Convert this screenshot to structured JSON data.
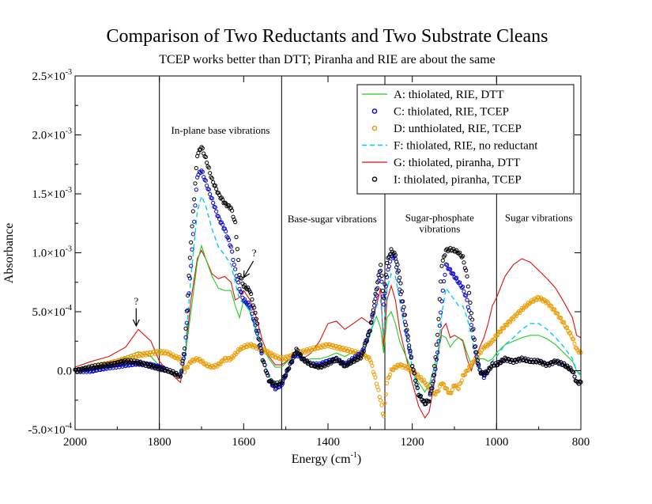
{
  "chart_data": {
    "type": "line",
    "title": "Comparison of Two Reductants and Two Substrate Cleans",
    "subtitle": "TCEP works better than DTT; Piranha and RIE are about the same",
    "xlabel": "Energy (cm",
    "xlabel_sup": "-1",
    "xlabel_end": ")",
    "ylabel": "Absorbance",
    "xlim": [
      2000,
      800
    ],
    "ylim": [
      -0.0005,
      0.0025
    ],
    "x_reversed": true,
    "grid": false,
    "legend_position": "top-right",
    "x_ticks": [
      {
        "value": 2000,
        "label": "2000"
      },
      {
        "value": 1800,
        "label": "1800"
      },
      {
        "value": 1600,
        "label": "1600"
      },
      {
        "value": 1400,
        "label": "1400"
      },
      {
        "value": 1200,
        "label": "1200"
      },
      {
        "value": 1000,
        "label": "1000"
      },
      {
        "value": 800,
        "label": "800"
      }
    ],
    "y_ticks": [
      {
        "value": -0.0005,
        "mant": "-5.0×10",
        "exp": "-4"
      },
      {
        "value": 0,
        "mant": "0.0",
        "exp": ""
      },
      {
        "value": 0.0005,
        "mant": "5.0×10",
        "exp": "-4"
      },
      {
        "value": 0.001,
        "mant": "1.0×10",
        "exp": "-3"
      },
      {
        "value": 0.0015,
        "mant": "1.5×10",
        "exp": "-3"
      },
      {
        "value": 0.002,
        "mant": "2.0×10",
        "exp": "-3"
      },
      {
        "value": 0.0025,
        "mant": "2.5×10",
        "exp": "-3"
      }
    ],
    "region_lines": [
      1800,
      1510,
      1265,
      1000
    ],
    "region_labels": [
      {
        "lines": [
          "In-plane base vibrations"
        ],
        "x": 1655,
        "y": 0.00201
      },
      {
        "lines": [
          "Base-sugar vibrations"
        ],
        "x": 1390,
        "y": 0.00126
      },
      {
        "lines": [
          "Sugar-phosphate",
          "vibrations"
        ],
        "x": 1135,
        "y": 0.00127
      },
      {
        "lines": [
          "Sugar vibrations"
        ],
        "x": 900,
        "y": 0.00127
      }
    ],
    "annotations": [
      {
        "text": "?",
        "text_x": 1855,
        "text_y": 0.00056,
        "from": [
          1855,
          0.00053
        ],
        "to": [
          1855,
          0.00038
        ]
      },
      {
        "text": "?",
        "text_x": 1575,
        "text_y": 0.00097,
        "from": [
          1577,
          0.00093
        ],
        "to": [
          1600,
          0.00079
        ]
      }
    ],
    "series": [
      {
        "name": "A: thiolated, RIE, DTT",
        "color": "#22cc22",
        "style": "line",
        "x": [
          2000,
          1960,
          1920,
          1880,
          1850,
          1820,
          1800,
          1780,
          1765,
          1750,
          1740,
          1725,
          1710,
          1700,
          1690,
          1675,
          1660,
          1645,
          1630,
          1620,
          1610,
          1600,
          1585,
          1570,
          1555,
          1540,
          1525,
          1510,
          1490,
          1475,
          1460,
          1440,
          1420,
          1400,
          1380,
          1360,
          1340,
          1320,
          1300,
          1285,
          1275,
          1268,
          1260,
          1250,
          1240,
          1230,
          1215,
          1200,
          1185,
          1170,
          1160,
          1150,
          1140,
          1130,
          1120,
          1110,
          1100,
          1090,
          1080,
          1070,
          1060,
          1050,
          1040,
          1030,
          1020,
          1010,
          1000,
          980,
          960,
          940,
          920,
          900,
          880,
          860,
          840,
          820,
          810,
          800
        ],
        "y": [
          0.0,
          2e-05,
          5e-05,
          0.00012,
          0.00016,
          0.00012,
          4e-05,
          0.0,
          -2e-05,
          -5e-05,
          0.0001,
          0.0005,
          0.00092,
          0.00106,
          0.00095,
          0.0008,
          0.0007,
          0.00068,
          0.00068,
          0.00055,
          0.00045,
          0.0006,
          0.0005,
          0.00035,
          0.0002,
          0.0001,
          3e-05,
          3e-05,
          0.0001,
          0.00015,
          8e-05,
          0.0001,
          0.0001,
          0.00012,
          0.00015,
          0.00012,
          0.00016,
          0.00012,
          0.00032,
          0.00046,
          0.00036,
          0.00015,
          0.00045,
          0.0005,
          0.0004,
          0.00025,
          0.00012,
          0.0,
          -0.0001,
          -0.00018,
          -0.00012,
          0.0,
          0.00015,
          0.0003,
          0.00028,
          0.0002,
          0.00025,
          0.00028,
          0.00026,
          0.00015,
          5e-05,
          8e-05,
          0.0001,
          0.0001,
          8e-05,
          0.0001,
          0.00015,
          0.00022,
          0.00025,
          0.00028,
          0.0003,
          0.0003,
          0.00027,
          0.00022,
          0.00015,
          8e-05,
          0.0,
          -3e-05
        ]
      },
      {
        "name": "C: thiolated, RIE, TCEP",
        "color": "#0000cc",
        "style": "circles",
        "x": [
          2000,
          1960,
          1920,
          1880,
          1850,
          1820,
          1800,
          1780,
          1765,
          1750,
          1740,
          1725,
          1710,
          1700,
          1690,
          1675,
          1660,
          1645,
          1630,
          1620,
          1610,
          1600,
          1585,
          1570,
          1555,
          1540,
          1525,
          1510,
          1490,
          1475,
          1460,
          1440,
          1420,
          1400,
          1380,
          1360,
          1340,
          1320,
          1300,
          1285,
          1275,
          1268,
          1260,
          1250,
          1240,
          1230,
          1215,
          1200,
          1185,
          1170,
          1160,
          1150,
          1140,
          1130,
          1120,
          1110,
          1100,
          1090,
          1080,
          1070,
          1060,
          1050,
          1040,
          1030,
          1020,
          1010,
          1000,
          980,
          960,
          940,
          920,
          900,
          880,
          860,
          840,
          820,
          810,
          800
        ],
        "y": [
          0.0,
          0.0,
          3e-05,
          5e-05,
          6e-05,
          5e-05,
          3e-05,
          0.0,
          -2e-05,
          -5e-05,
          0.00015,
          0.0009,
          0.00165,
          0.0017,
          0.0016,
          0.00145,
          0.0013,
          0.0012,
          0.00105,
          0.00085,
          0.0007,
          0.0006,
          0.00055,
          0.00035,
          0.0001,
          -8e-05,
          -0.00015,
          -0.00012,
          5e-05,
          0.00015,
          0.0001,
          5e-05,
          5e-05,
          8e-05,
          0.0001,
          5e-05,
          0.0001,
          0.00015,
          0.00035,
          0.00065,
          0.00085,
          0.00055,
          0.0008,
          0.00098,
          0.00095,
          0.0007,
          0.00035,
          5e-05,
          -0.0002,
          -0.00028,
          -0.00025,
          -0.0001,
          0.00015,
          0.0006,
          0.0009,
          0.00085,
          0.0008,
          0.00075,
          0.0007,
          0.0006,
          0.0004,
          0.00015,
          0.0,
          -5e-05,
          0.0,
          5e-05,
          5e-05,
          0.0001,
          8e-05,
          0.0001,
          8e-05,
          8e-05,
          5e-05,
          8e-05,
          5e-05,
          0.0,
          -0.0001,
          -0.0001
        ]
      },
      {
        "name": "D: unthiolated, RIE, TCEP",
        "color": "#e89a00",
        "style": "circles",
        "x": [
          2000,
          1960,
          1920,
          1880,
          1850,
          1820,
          1800,
          1780,
          1765,
          1750,
          1740,
          1725,
          1710,
          1700,
          1690,
          1675,
          1660,
          1645,
          1630,
          1620,
          1610,
          1600,
          1585,
          1570,
          1555,
          1540,
          1525,
          1510,
          1490,
          1475,
          1460,
          1440,
          1420,
          1400,
          1380,
          1360,
          1340,
          1320,
          1300,
          1285,
          1275,
          1268,
          1260,
          1250,
          1240,
          1230,
          1215,
          1200,
          1185,
          1170,
          1160,
          1150,
          1140,
          1130,
          1120,
          1110,
          1100,
          1090,
          1080,
          1070,
          1060,
          1050,
          1040,
          1030,
          1020,
          1010,
          1000,
          980,
          960,
          940,
          920,
          900,
          880,
          860,
          840,
          820,
          810,
          800
        ],
        "y": [
          0.0,
          3e-05,
          6e-05,
          0.0001,
          0.00013,
          0.00015,
          0.00016,
          0.00015,
          0.00012,
          0.0001,
          0.0,
          8e-05,
          0.0001,
          8e-05,
          5e-05,
          3e-05,
          5e-05,
          0.0001,
          0.0001,
          0.00014,
          0.00018,
          0.0002,
          0.00022,
          0.0002,
          0.00018,
          0.00015,
          0.00012,
          0.0001,
          0.00012,
          0.00015,
          0.00016,
          0.00018,
          0.0002,
          0.00022,
          0.0002,
          0.00018,
          0.00016,
          0.00014,
          0.0001,
          -0.0001,
          -0.00025,
          -0.0004,
          -0.0001,
          0.0,
          3e-05,
          5e-05,
          3e-05,
          0.0,
          -5e-05,
          -0.0001,
          -0.00015,
          -0.0002,
          -0.00018,
          -0.0001,
          -0.00015,
          -0.0002,
          -0.00012,
          -0.00015,
          -5e-05,
          0.0,
          5e-05,
          0.0001,
          0.00015,
          0.0002,
          0.00022,
          0.00025,
          0.0003,
          0.00038,
          0.00045,
          0.00052,
          0.00058,
          0.00062,
          0.00058,
          0.0005,
          0.0004,
          0.00028,
          0.00018,
          0.00015
        ]
      },
      {
        "name": "F: thiolated, RIE, no reductant",
        "color": "#00d0e8",
        "style": "dash",
        "x": [
          2000,
          1960,
          1920,
          1880,
          1850,
          1820,
          1800,
          1780,
          1765,
          1750,
          1740,
          1725,
          1710,
          1700,
          1690,
          1675,
          1660,
          1645,
          1630,
          1620,
          1610,
          1600,
          1585,
          1570,
          1555,
          1540,
          1525,
          1510,
          1490,
          1475,
          1460,
          1440,
          1420,
          1400,
          1380,
          1360,
          1340,
          1320,
          1300,
          1285,
          1275,
          1268,
          1260,
          1250,
          1240,
          1230,
          1215,
          1200,
          1185,
          1170,
          1160,
          1150,
          1140,
          1130,
          1120,
          1110,
          1100,
          1090,
          1080,
          1070,
          1060,
          1050,
          1040,
          1030,
          1020,
          1010,
          1000,
          980,
          960,
          940,
          920,
          900,
          880,
          860,
          840,
          820,
          810,
          800
        ],
        "y": [
          0.0,
          0.0,
          3e-05,
          5e-05,
          6e-05,
          5e-05,
          3e-05,
          0.0,
          -2e-05,
          -5e-05,
          0.00012,
          0.0008,
          0.00135,
          0.00148,
          0.0014,
          0.0012,
          0.00105,
          0.00098,
          0.0009,
          0.00075,
          0.0006,
          0.00058,
          0.0005,
          0.00032,
          0.0001,
          -5e-05,
          -0.0001,
          -0.0001,
          5e-05,
          0.00015,
          0.0001,
          5e-05,
          6e-05,
          8e-05,
          0.0001,
          6e-05,
          0.0001,
          0.00014,
          0.0003,
          0.00055,
          0.0006,
          0.0003,
          0.0007,
          0.00082,
          0.0008,
          0.0006,
          0.0003,
          3e-05,
          -0.00018,
          -0.00025,
          -0.0002,
          -8e-05,
          0.0001,
          0.00048,
          0.0007,
          0.00065,
          0.0006,
          0.00055,
          0.00055,
          0.00045,
          0.0003,
          0.00012,
          0.0,
          -3e-05,
          2e-05,
          8e-05,
          0.00012,
          0.00022,
          0.00028,
          0.00035,
          0.0004,
          0.0004,
          0.00035,
          0.00028,
          0.0002,
          0.0001,
          0.0,
          -5e-05
        ]
      },
      {
        "name": "G: thiolated, piranha, DTT",
        "color": "#dd1111",
        "style": "line",
        "x": [
          2000,
          1960,
          1920,
          1880,
          1850,
          1820,
          1800,
          1780,
          1765,
          1750,
          1740,
          1725,
          1710,
          1700,
          1690,
          1675,
          1660,
          1645,
          1630,
          1620,
          1610,
          1600,
          1585,
          1570,
          1555,
          1540,
          1525,
          1510,
          1490,
          1475,
          1460,
          1440,
          1420,
          1400,
          1380,
          1360,
          1340,
          1320,
          1300,
          1285,
          1275,
          1268,
          1260,
          1250,
          1240,
          1230,
          1215,
          1200,
          1185,
          1170,
          1160,
          1150,
          1140,
          1130,
          1120,
          1110,
          1100,
          1090,
          1080,
          1070,
          1060,
          1050,
          1040,
          1030,
          1020,
          1010,
          1000,
          980,
          960,
          940,
          920,
          900,
          880,
          860,
          840,
          820,
          810,
          800
        ],
        "y": [
          3e-05,
          8e-05,
          0.00012,
          0.0002,
          0.00035,
          0.00025,
          8e-05,
          0.0,
          -5e-05,
          -0.0001,
          0.0001,
          0.0006,
          0.00095,
          0.00102,
          0.00095,
          0.00082,
          0.00078,
          0.0008,
          0.00075,
          0.0006,
          0.00062,
          0.00068,
          0.0006,
          0.00045,
          0.00025,
          0.00012,
          5e-05,
          5e-05,
          0.0001,
          0.00015,
          0.0001,
          0.00015,
          0.00025,
          0.0004,
          0.00042,
          0.00035,
          0.0004,
          0.00045,
          0.0004,
          0.00055,
          0.0007,
          0.0002,
          0.0006,
          0.00072,
          0.0006,
          0.00035,
          0.00012,
          -0.0001,
          -0.0003,
          -0.0004,
          -0.00035,
          -0.00015,
          0.0001,
          0.00035,
          0.0004,
          0.00028,
          0.0003,
          0.00028,
          0.00025,
          0.0001,
          0.0,
          0.0001,
          0.0002,
          0.00028,
          0.0004,
          0.00055,
          0.00062,
          0.0008,
          0.0009,
          0.00095,
          0.00092,
          0.00085,
          0.00078,
          0.0007,
          0.00058,
          0.00045,
          0.0003,
          0.00028
        ]
      },
      {
        "name": "I: thiolated, piranha, TCEP",
        "color": "#000000",
        "style": "circles",
        "x": [
          2000,
          1960,
          1920,
          1880,
          1850,
          1820,
          1800,
          1780,
          1765,
          1750,
          1740,
          1725,
          1710,
          1700,
          1690,
          1675,
          1660,
          1645,
          1630,
          1620,
          1610,
          1600,
          1585,
          1570,
          1555,
          1540,
          1525,
          1510,
          1490,
          1475,
          1460,
          1440,
          1420,
          1400,
          1380,
          1360,
          1340,
          1320,
          1300,
          1285,
          1275,
          1268,
          1260,
          1250,
          1240,
          1230,
          1215,
          1200,
          1185,
          1170,
          1160,
          1150,
          1140,
          1130,
          1120,
          1110,
          1100,
          1090,
          1080,
          1070,
          1060,
          1050,
          1040,
          1030,
          1020,
          1010,
          1000,
          980,
          960,
          940,
          920,
          900,
          880,
          860,
          840,
          820,
          810,
          800
        ],
        "y": [
          0.0,
          3e-05,
          5e-05,
          8e-05,
          7e-05,
          4e-05,
          2e-05,
          0.0,
          -2e-05,
          -5e-05,
          0.0002,
          0.0011,
          0.00183,
          0.0019,
          0.0018,
          0.00162,
          0.0015,
          0.00142,
          0.00138,
          0.00125,
          0.00082,
          0.00072,
          0.00068,
          0.00045,
          0.0001,
          -8e-05,
          -0.00012,
          -0.0001,
          5e-05,
          0.00018,
          0.0001,
          5e-05,
          3e-05,
          6e-05,
          0.0001,
          4e-05,
          8e-05,
          0.00012,
          0.00035,
          0.0007,
          0.0009,
          0.0006,
          0.00092,
          0.00102,
          0.00098,
          0.0008,
          0.0004,
          5e-05,
          -0.0002,
          -0.00028,
          -0.00025,
          -5e-05,
          0.0003,
          0.0009,
          0.00102,
          0.00103,
          0.00102,
          0.001,
          0.00096,
          0.0008,
          0.0005,
          0.0002,
          0.0,
          -3e-05,
          0.0,
          5e-05,
          5e-05,
          0.0001,
          8e-05,
          0.0001,
          8e-05,
          8e-05,
          5e-05,
          8e-05,
          5e-05,
          0.0,
          -0.0001,
          -0.0001
        ]
      }
    ]
  }
}
